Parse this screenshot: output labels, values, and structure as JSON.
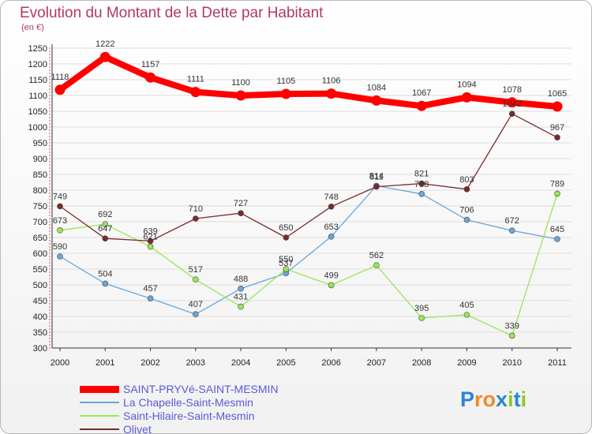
{
  "title": "Evolution du Montant de la Dette par Habitant",
  "subtitle": "(en €)",
  "logo_text": "Proxiti",
  "colors": {
    "title": "#b3366a",
    "legend_text": "#5a5ad8",
    "grid": "#dddddd",
    "axis": "#333333"
  },
  "chart_data": {
    "type": "line",
    "title": "Evolution du Montant de la Dette par Habitant",
    "ylabel": "(en €)",
    "xlabel": "",
    "x": [
      "2000",
      "2001",
      "2002",
      "2003",
      "2004",
      "2005",
      "2006",
      "2007",
      "2008",
      "2009",
      "2010",
      "2011"
    ],
    "ylim": [
      300,
      1250
    ],
    "y_ticks": [
      300,
      350,
      400,
      450,
      500,
      550,
      600,
      650,
      700,
      750,
      800,
      850,
      900,
      950,
      1000,
      1050,
      1100,
      1150,
      1200,
      1250
    ],
    "grid": true,
    "legend_position": "bottom-left",
    "series": [
      {
        "name": "SAINT-PRYVé-SAINT-MESMIN",
        "color": "#ff0000",
        "values": [
          1118,
          1222,
          1157,
          1111,
          1100,
          1105,
          1106,
          1084,
          1067,
          1094,
          1078,
          1065
        ]
      },
      {
        "name": "La Chapelle-Saint-Mesmin",
        "color": "#6aa6d8",
        "values": [
          590,
          504,
          457,
          407,
          488,
          537,
          653,
          814,
          788,
          706,
          672,
          645
        ]
      },
      {
        "name": "Saint-Hilaire-Saint-Mesmin",
        "color": "#99e655",
        "values": [
          673,
          692,
          621,
          517,
          431,
          550,
          499,
          562,
          395,
          405,
          339,
          789
        ]
      },
      {
        "name": "Olivet",
        "color": "#7a2a2a",
        "values": [
          749,
          647,
          639,
          710,
          727,
          650,
          748,
          811,
          821,
          803,
          1042,
          967
        ]
      }
    ]
  }
}
